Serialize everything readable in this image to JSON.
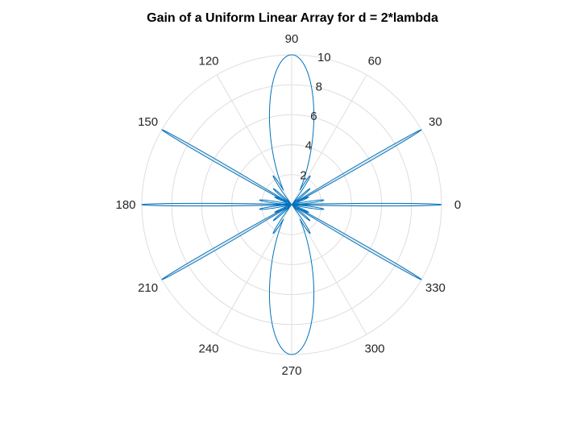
{
  "chart_data": {
    "type": "polar-line",
    "title": "Gain of a Uniform Linear Array for d = 2*lambda",
    "theta_unit": "degrees",
    "theta_ticks": [
      0,
      30,
      60,
      90,
      120,
      150,
      180,
      210,
      240,
      270,
      300,
      330
    ],
    "theta_tick_labels": [
      "0",
      "30",
      "60",
      "90",
      "120",
      "150",
      "180",
      "210",
      "240",
      "270",
      "300",
      "330"
    ],
    "rlim": [
      0,
      10
    ],
    "r_ticks": [
      2,
      4,
      6,
      8,
      10
    ],
    "r_tick_labels": [
      "2",
      "4",
      "6",
      "8",
      "10"
    ],
    "r_tick_label_angle_deg": 80,
    "grid": true,
    "grid_color": "#dedede",
    "series": [
      {
        "color": "#0072bd",
        "peak_gain": 10,
        "main_lobe_directions_deg": [
          0,
          30,
          90,
          150,
          180,
          210,
          270,
          330
        ],
        "broad_lobe_directions_deg": [
          90,
          270
        ],
        "near_origin_sidelobe_max": 2.3
      }
    ]
  }
}
